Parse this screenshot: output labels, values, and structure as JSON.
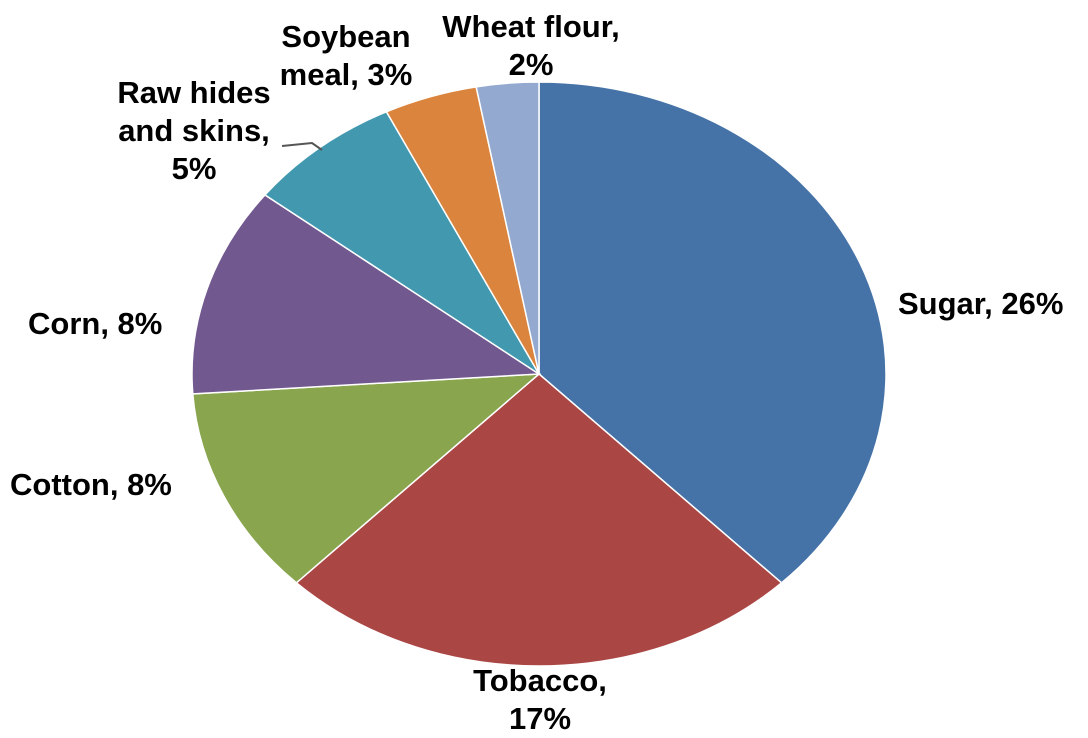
{
  "chart_data": {
    "type": "pie",
    "title": "",
    "slices": [
      {
        "label_lines": [
          "Sugar, 26%"
        ],
        "percent": 26,
        "color": "#4572A7"
      },
      {
        "label_lines": [
          "Tobacco,",
          "17%"
        ],
        "percent": 17,
        "color": "#AA4643"
      },
      {
        "label_lines": [
          "Cotton, 8%"
        ],
        "percent": 8,
        "color": "#89A54E"
      },
      {
        "label_lines": [
          "Corn, 8%"
        ],
        "percent": 8,
        "color": "#71588F"
      },
      {
        "label_lines": [
          "Raw hides",
          "and skins,",
          "5%"
        ],
        "percent": 5,
        "color": "#4198AF"
      },
      {
        "label_lines": [
          "Soybean",
          "meal, 3%"
        ],
        "percent": 3,
        "color": "#DB843D"
      },
      {
        "label_lines": [
          "Wheat flour,",
          "2%"
        ],
        "percent": 2,
        "color": "#93A9CF"
      }
    ]
  }
}
